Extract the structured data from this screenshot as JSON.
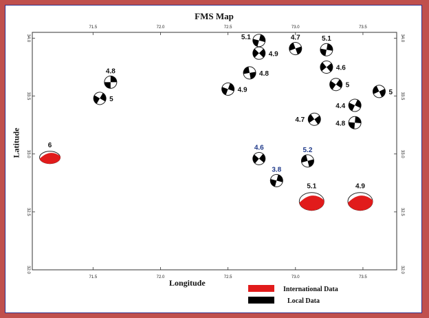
{
  "title": "FMS Map",
  "axes": {
    "xlabel": "Longitude",
    "ylabel": "Latitude",
    "xlim": [
      71.05,
      73.75
    ],
    "ylim": [
      32.0,
      34.05
    ],
    "top_ticks": [
      "71.5",
      "72.0",
      "72.5",
      "73.0",
      "73.5"
    ],
    "bottom_ticks": [
      "71.5",
      "72.0",
      "72.5",
      "73.0",
      "73.5"
    ],
    "left_ticks": [
      "34.0",
      "33.5",
      "33.0",
      "32.5",
      "32.0"
    ],
    "right_ticks": [
      "34.0",
      "33.5",
      "33.0",
      "32.5",
      "32.0"
    ]
  },
  "legend": [
    {
      "label": "International Data",
      "color": "#e11b1b"
    },
    {
      "label": "Local Data",
      "color": "#000000"
    }
  ],
  "colors": {
    "frame": "#c0504d",
    "international": "#e11b1b",
    "local": "#000000",
    "label_blue": "#1f3a8a"
  },
  "events": [
    {
      "lon": 71.63,
      "lat": 33.62,
      "mag": "4.8",
      "type": "local",
      "size": "small"
    },
    {
      "lon": 71.55,
      "lat": 33.48,
      "mag": "5",
      "type": "local",
      "size": "small"
    },
    {
      "lon": 71.18,
      "lat": 32.97,
      "mag": "6",
      "type": "international",
      "size": "large"
    },
    {
      "lon": 72.73,
      "lat": 33.98,
      "mag": "5.1",
      "type": "local",
      "size": "small"
    },
    {
      "lon": 72.73,
      "lat": 33.87,
      "mag": "4.9",
      "type": "local",
      "size": "small"
    },
    {
      "lon": 72.66,
      "lat": 33.7,
      "mag": "4.8",
      "type": "local",
      "size": "small"
    },
    {
      "lon": 72.5,
      "lat": 33.56,
      "mag": "4.9",
      "type": "local",
      "size": "small"
    },
    {
      "lon": 73.0,
      "lat": 33.91,
      "mag": "4.7",
      "type": "local",
      "size": "small"
    },
    {
      "lon": 73.23,
      "lat": 33.9,
      "mag": "5.1",
      "type": "local",
      "size": "small"
    },
    {
      "lon": 73.23,
      "lat": 33.75,
      "mag": "4.6",
      "type": "local",
      "size": "small"
    },
    {
      "lon": 73.3,
      "lat": 33.6,
      "mag": "5",
      "type": "local",
      "size": "small"
    },
    {
      "lon": 73.62,
      "lat": 33.54,
      "mag": "5",
      "type": "local",
      "size": "small"
    },
    {
      "lon": 73.44,
      "lat": 33.42,
      "mag": "4.4",
      "type": "local",
      "size": "small"
    },
    {
      "lon": 73.14,
      "lat": 33.3,
      "mag": "4.7",
      "type": "local",
      "size": "small"
    },
    {
      "lon": 73.44,
      "lat": 33.27,
      "mag": "4.8",
      "type": "local",
      "size": "small"
    },
    {
      "lon": 72.73,
      "lat": 32.96,
      "mag": "4.6",
      "type": "local",
      "size": "small",
      "label_color": "blue"
    },
    {
      "lon": 73.09,
      "lat": 32.94,
      "mag": "5.2",
      "type": "local",
      "size": "small",
      "label_color": "blue"
    },
    {
      "lon": 72.86,
      "lat": 32.77,
      "mag": "3.8",
      "type": "local",
      "size": "small",
      "label_color": "blue"
    },
    {
      "lon": 73.12,
      "lat": 32.59,
      "mag": "5.1",
      "type": "international",
      "size": "large"
    },
    {
      "lon": 73.48,
      "lat": 32.59,
      "mag": "4.9",
      "type": "international",
      "size": "large"
    }
  ]
}
